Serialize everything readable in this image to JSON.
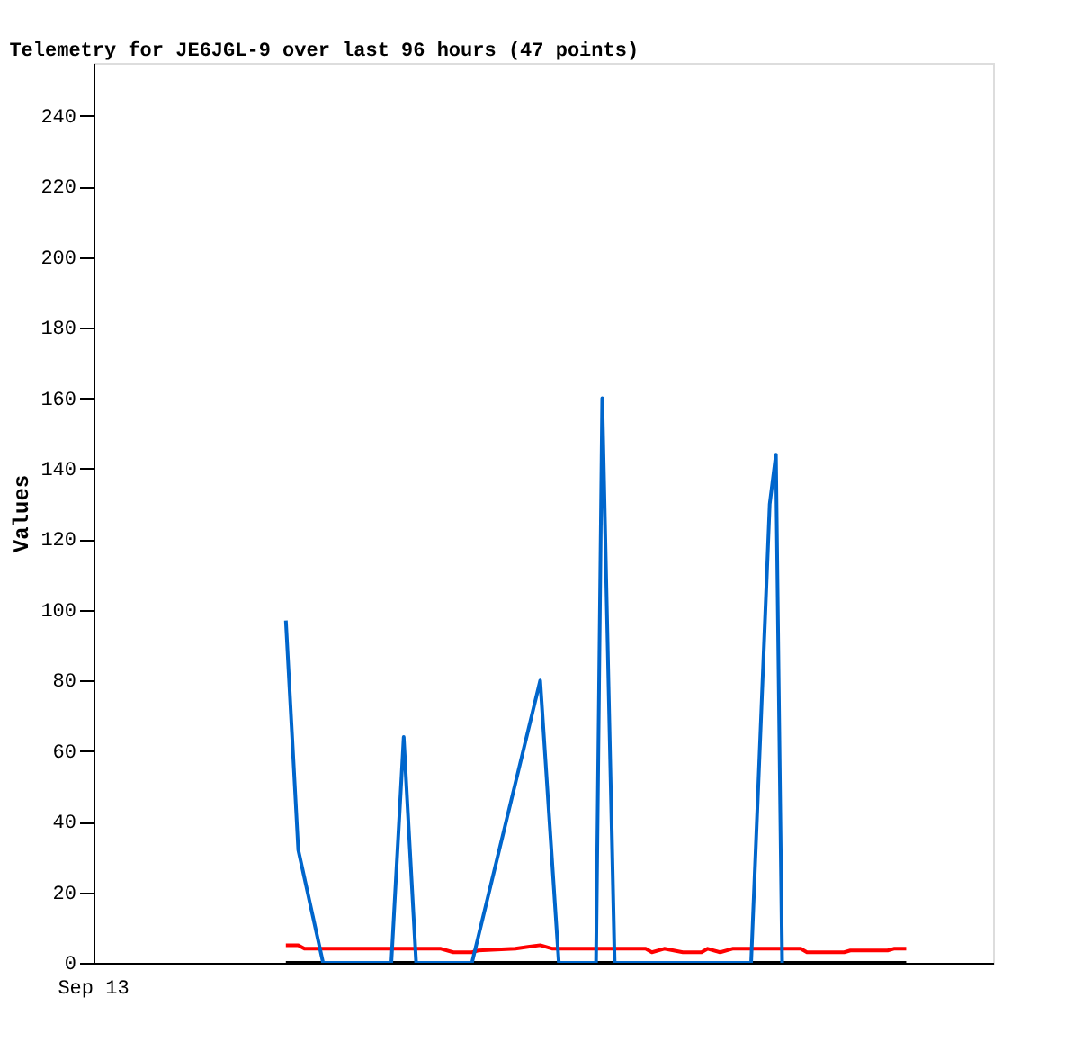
{
  "chart_data": {
    "type": "line",
    "title": "Telemetry for JE6JGL-9 over last 96 hours (47 points)",
    "ylabel": "Values",
    "categories": [
      null,
      null,
      null,
      null,
      null,
      null,
      null,
      null,
      null,
      null,
      null,
      null,
      null,
      null,
      null,
      null,
      null,
      null,
      null,
      null,
      null,
      null,
      null,
      null,
      null,
      null,
      null,
      null,
      null,
      null,
      null,
      null,
      null,
      null,
      null,
      null,
      null,
      null,
      null,
      null,
      null,
      null,
      null,
      null,
      null,
      null,
      null,
      null,
      null,
      null,
      null,
      null,
      null,
      null,
      null,
      null,
      null,
      null,
      null,
      null,
      null,
      null,
      null,
      null,
      null,
      null,
      null,
      null,
      null,
      null,
      null,
      null,
      null,
      null,
      null,
      null,
      null,
      null,
      null,
      null,
      null,
      null,
      null,
      null,
      null,
      null,
      null,
      null,
      null,
      null,
      null,
      null,
      null,
      null,
      null,
      null,
      null,
      null,
      null,
      null,
      null,
      null,
      null,
      null,
      null,
      null,
      null,
      null,
      null,
      null,
      null,
      null,
      null,
      null,
      null,
      null,
      null,
      null,
      null,
      null,
      null,
      null,
      null,
      null,
      null,
      null,
      null,
      null,
      null,
      null,
      null,
      null,
      null,
      null,
      null,
      null,
      null,
      null,
      null,
      null,
      null,
      null,
      null,
      null,
      null,
      null
    ],
    "annotations": [
      "Sep 13"
    ],
    "ylim": [
      0,
      255
    ],
    "yticks": [
      0,
      20,
      40,
      60,
      80,
      100,
      120,
      140,
      160,
      180,
      200,
      220,
      240
    ],
    "grid": false,
    "marker": "none",
    "line_style": "solid",
    "series": [
      {
        "color": "#000000",
        "values": [
          null,
          null,
          null,
          null,
          null,
          null,
          null,
          null,
          null,
          null,
          null,
          null,
          null,
          null,
          null,
          null,
          null,
          null,
          null,
          null,
          null,
          null,
          null,
          null,
          null,
          null,
          null,
          null,
          null,
          null,
          null,
          0,
          null,
          null,
          null,
          null,
          null,
          null,
          null,
          null,
          null,
          null,
          null,
          null,
          null,
          null,
          null,
          null,
          null,
          null,
          null,
          null,
          null,
          null,
          null,
          null,
          null,
          null,
          null,
          null,
          null,
          null,
          null,
          null,
          null,
          null,
          null,
          null,
          null,
          null,
          null,
          null,
          null,
          null,
          null,
          null,
          null,
          null,
          null,
          null,
          null,
          null,
          null,
          null,
          null,
          null,
          null,
          null,
          null,
          null,
          null,
          null,
          null,
          null,
          null,
          null,
          null,
          null,
          null,
          null,
          null,
          null,
          null,
          null,
          null,
          null,
          null,
          null,
          null,
          null,
          null,
          null,
          null,
          null,
          null,
          null,
          null,
          null,
          null,
          null,
          null,
          null,
          null,
          null,
          null,
          null,
          null,
          null,
          null,
          null,
          null,
          0,
          null,
          null,
          null,
          null,
          null,
          null,
          null,
          null,
          null,
          null,
          null,
          null,
          null,
          null
        ]
      },
      {
        "color": "#ff0000",
        "values": [
          null,
          null,
          null,
          null,
          null,
          null,
          null,
          null,
          null,
          null,
          null,
          null,
          null,
          null,
          null,
          null,
          null,
          null,
          null,
          null,
          null,
          null,
          null,
          null,
          null,
          null,
          null,
          null,
          null,
          null,
          null,
          5,
          null,
          5,
          4,
          null,
          null,
          null,
          null,
          null,
          null,
          null,
          null,
          null,
          null,
          null,
          null,
          null,
          null,
          null,
          null,
          null,
          null,
          null,
          null,
          null,
          4,
          null,
          3,
          null,
          null,
          3,
          3.5,
          null,
          null,
          null,
          null,
          null,
          4,
          null,
          4.5,
          null,
          5,
          null,
          4,
          null,
          null,
          null,
          null,
          null,
          null,
          null,
          null,
          null,
          null,
          null,
          null,
          null,
          null,
          4,
          3,
          null,
          4,
          null,
          null,
          3,
          null,
          null,
          3,
          4,
          null,
          3,
          null,
          4,
          null,
          null,
          null,
          null,
          null,
          null,
          null,
          null,
          null,
          null,
          4,
          3,
          null,
          null,
          null,
          null,
          null,
          3,
          3.5,
          null,
          null,
          null,
          null,
          null,
          3.5,
          4,
          null,
          4,
          null,
          null,
          null,
          null,
          null,
          null,
          null,
          null,
          null,
          null,
          null,
          null,
          null,
          null
        ]
      },
      {
        "color": "#0066cc",
        "values": [
          null,
          null,
          null,
          null,
          null,
          null,
          null,
          null,
          null,
          null,
          null,
          null,
          null,
          null,
          null,
          null,
          null,
          null,
          null,
          null,
          null,
          null,
          null,
          null,
          null,
          null,
          null,
          null,
          null,
          null,
          null,
          97,
          null,
          32,
          null,
          null,
          null,
          0,
          null,
          null,
          null,
          null,
          null,
          null,
          null,
          null,
          null,
          null,
          0,
          null,
          64,
          null,
          0,
          null,
          null,
          null,
          null,
          null,
          null,
          null,
          null,
          0,
          null,
          null,
          null,
          null,
          null,
          null,
          null,
          null,
          null,
          null,
          80,
          null,
          null,
          0,
          null,
          null,
          null,
          null,
          null,
          0,
          160,
          null,
          0,
          null,
          null,
          null,
          null,
          null,
          null,
          null,
          null,
          null,
          null,
          null,
          null,
          null,
          null,
          null,
          null,
          null,
          null,
          null,
          null,
          null,
          0,
          null,
          null,
          130,
          144,
          0,
          null,
          null,
          null,
          null,
          null,
          null,
          null,
          null,
          null,
          null,
          null,
          null,
          null,
          null,
          null,
          null,
          null,
          null,
          null,
          null,
          null,
          null,
          null,
          null,
          null,
          null,
          null,
          null,
          null,
          null,
          null,
          null,
          null,
          null
        ]
      }
    ]
  }
}
